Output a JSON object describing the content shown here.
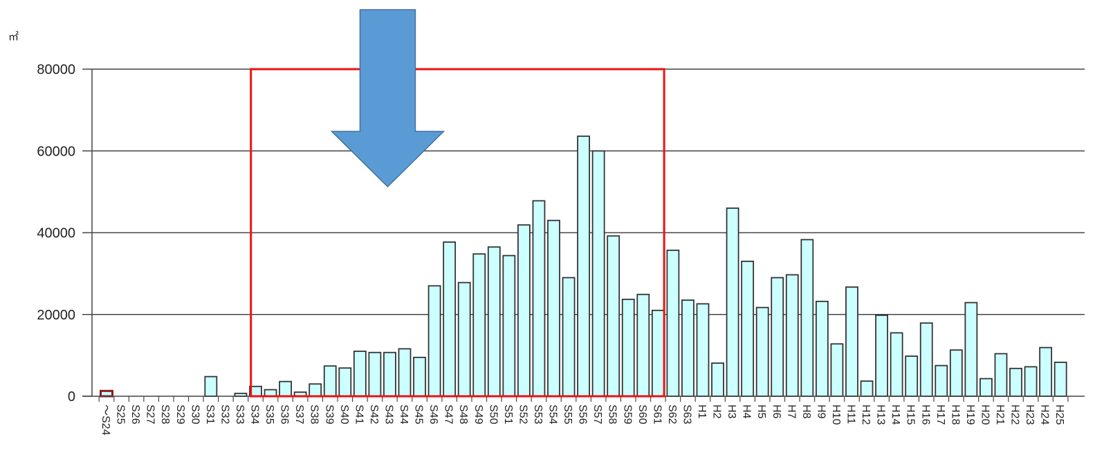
{
  "chart_data": {
    "type": "bar",
    "unit_label": "㎡",
    "ylim": [
      0,
      80000
    ],
    "yticks": [
      0,
      20000,
      40000,
      60000,
      80000
    ],
    "grid": true,
    "categories": [
      "～S24",
      "S25",
      "S26",
      "S27",
      "S28",
      "S29",
      "S30",
      "S31",
      "S32",
      "S33",
      "S34",
      "S35",
      "S36",
      "S37",
      "S38",
      "S39",
      "S40",
      "S41",
      "S42",
      "S43",
      "S44",
      "S45",
      "S46",
      "S47",
      "S48",
      "S49",
      "S50",
      "S51",
      "S52",
      "S53",
      "S54",
      "S55",
      "S56",
      "S57",
      "S58",
      "S59",
      "S60",
      "S61",
      "S62",
      "S63",
      "H1",
      "H2",
      "H3",
      "H4",
      "H5",
      "H6",
      "H7",
      "H8",
      "H9",
      "H10",
      "H11",
      "H12",
      "H13",
      "H14",
      "H15",
      "H16",
      "H17",
      "H18",
      "H19",
      "H20",
      "H21",
      "H22",
      "H23",
      "H24",
      "H25"
    ],
    "values": [
      1300,
      0,
      0,
      0,
      0,
      0,
      0,
      4800,
      0,
      700,
      2400,
      1600,
      3600,
      1000,
      3000,
      7400,
      6900,
      11000,
      10700,
      10700,
      11600,
      9500,
      27000,
      37700,
      27800,
      34800,
      36500,
      34400,
      41900,
      47800,
      43000,
      29000,
      63600,
      60000,
      39200,
      23700,
      24900,
      21000,
      35700,
      23500,
      22600,
      8100,
      46000,
      33000,
      21700,
      29000,
      29700,
      38300,
      23200,
      12800,
      26700,
      3700,
      19800,
      15500,
      9800,
      17900,
      7500,
      11300,
      22900,
      4300,
      10400,
      6800,
      7200,
      11900,
      8300
    ],
    "highlight": {
      "shape": "rectangle",
      "color": "#ee1111",
      "from_category": "S34",
      "to_category": "S61",
      "y_top": 80000
    },
    "arrow": {
      "color": "#5b9bd5",
      "target_category": "S43"
    },
    "colors": {
      "bar_fill": "#ccffff",
      "bar_stroke": "#333333",
      "first_bar_stroke": "#8b1a1a"
    }
  }
}
